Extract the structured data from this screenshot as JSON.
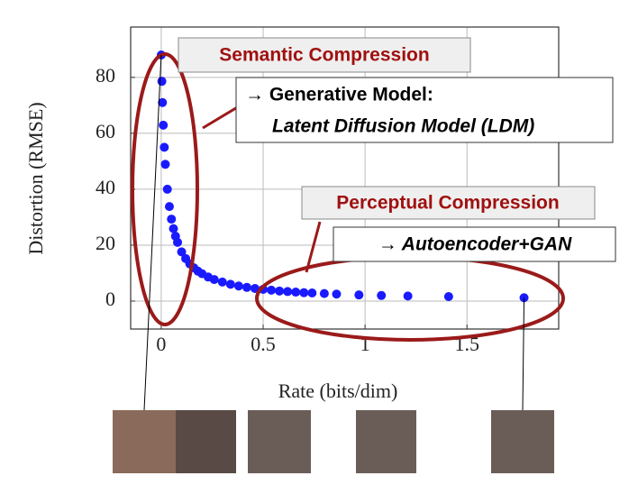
{
  "chart_data": {
    "type": "scatter",
    "xlabel": "Rate (bits/dim)",
    "ylabel": "Distortion (RMSE)",
    "x": [
      0.0,
      0.003,
      0.006,
      0.01,
      0.015,
      0.02,
      0.03,
      0.04,
      0.05,
      0.06,
      0.07,
      0.08,
      0.1,
      0.12,
      0.14,
      0.16,
      0.18,
      0.2,
      0.23,
      0.26,
      0.3,
      0.34,
      0.38,
      0.42,
      0.46,
      0.5,
      0.54,
      0.58,
      0.62,
      0.66,
      0.7,
      0.74,
      0.8,
      0.86,
      0.97,
      1.08,
      1.21,
      1.41,
      1.78
    ],
    "values": [
      88,
      78.6,
      71,
      62.9,
      55,
      48.9,
      40,
      33.8,
      29.3,
      25.9,
      23.2,
      21,
      17.6,
      15.2,
      13.3,
      11.9,
      10.7,
      9.8,
      8.6,
      7.7,
      6.8,
      6,
      5.4,
      4.9,
      4.5,
      4.2,
      3.9,
      3.6,
      3.4,
      3.2,
      3,
      2.9,
      2.7,
      2.5,
      2.2,
      2,
      1.8,
      1.6,
      1.2
    ],
    "color": "#1a1aff",
    "xlim": [
      -0.15,
      1.95
    ],
    "xticks": [
      0,
      0.5,
      1,
      1.5
    ],
    "ylim": [
      -10,
      98
    ],
    "yticks": [
      0,
      20,
      40,
      60,
      80
    ],
    "grid": true,
    "annotations": [
      "Semantic Compression",
      "→ Generative Model:",
      "Latent Diffusion Model (LDM)",
      "Perceptual Compression",
      "→ Autoencoder+GAN"
    ]
  }
}
